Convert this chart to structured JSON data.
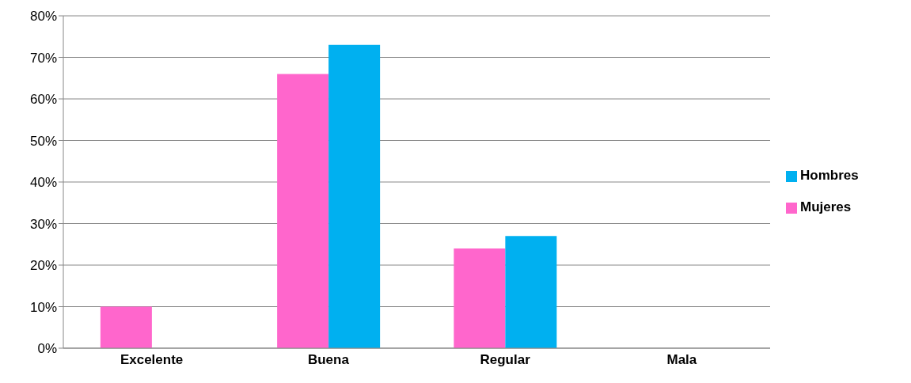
{
  "chart_data": {
    "type": "bar",
    "categories": [
      "Excelente",
      "Buena",
      "Regular",
      "Mala"
    ],
    "series": [
      {
        "name": "Mujeres",
        "color": "#ff66cc",
        "values": [
          10,
          66,
          24,
          0
        ]
      },
      {
        "name": "Hombres",
        "color": "#00b0f0",
        "values": [
          0,
          73,
          27,
          0
        ]
      }
    ],
    "ylim": [
      0,
      80
    ],
    "yticks": [
      {
        "value": 0,
        "label": "0%"
      },
      {
        "value": 10,
        "label": "10%"
      },
      {
        "value": 20,
        "label": "20%"
      },
      {
        "value": 30,
        "label": "30%"
      },
      {
        "value": 40,
        "label": "40%"
      },
      {
        "value": 50,
        "label": "50%"
      },
      {
        "value": 60,
        "label": "60%"
      },
      {
        "value": 70,
        "label": "70%"
      },
      {
        "value": 80,
        "label": "80%"
      }
    ],
    "grid": "y",
    "legend": "right"
  }
}
